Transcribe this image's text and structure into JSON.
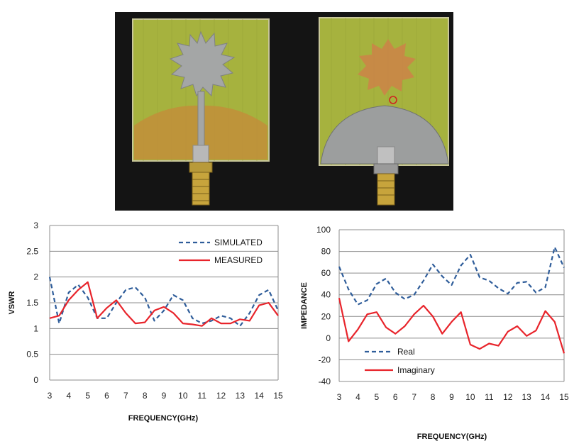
{
  "photo": {
    "description_icons": [
      "antenna-front-icon",
      "antenna-back-icon"
    ],
    "colors": {
      "background": "#141414",
      "board": "#a6b23e",
      "metal": "#a4a6a6",
      "copper": "#c58a3a"
    }
  },
  "chart_data": [
    {
      "type": "line",
      "xlabel": "FREQUENCY(GHz)",
      "ylabel": "VSWR",
      "xlim": [
        3,
        15
      ],
      "ylim": [
        0,
        3
      ],
      "xticks": [
        "3",
        "4",
        "5",
        "6",
        "7",
        "8",
        "9",
        "10",
        "11",
        "12",
        "13",
        "14",
        "15"
      ],
      "yticks": [
        "0",
        "0.5",
        "1",
        "1.5",
        "2",
        "2.5",
        "3"
      ],
      "grid": true,
      "legend_position": "top-right",
      "series": [
        {
          "name": "SIMULATED",
          "style": "dashed",
          "color": "#2f5d9a",
          "x": [
            3,
            3.5,
            4,
            4.5,
            5,
            5.5,
            6,
            6.5,
            7,
            7.5,
            8,
            8.5,
            9,
            9.5,
            10,
            10.5,
            11,
            11.5,
            12,
            12.5,
            13,
            13.5,
            14,
            14.5,
            15
          ],
          "y": [
            2.0,
            1.1,
            1.7,
            1.85,
            1.6,
            1.2,
            1.2,
            1.5,
            1.75,
            1.8,
            1.6,
            1.15,
            1.35,
            1.65,
            1.55,
            1.2,
            1.1,
            1.15,
            1.25,
            1.2,
            1.05,
            1.3,
            1.65,
            1.75,
            1.35
          ]
        },
        {
          "name": "MEASURED",
          "style": "solid",
          "color": "#e8242b",
          "x": [
            3,
            3.5,
            4,
            4.5,
            5,
            5.5,
            6,
            6.5,
            7,
            7.5,
            8,
            8.5,
            9,
            9.5,
            10,
            10.5,
            11,
            11.5,
            12,
            12.5,
            13,
            13.5,
            14,
            14.5,
            15
          ],
          "y": [
            1.2,
            1.25,
            1.55,
            1.75,
            1.9,
            1.2,
            1.4,
            1.55,
            1.3,
            1.1,
            1.12,
            1.35,
            1.42,
            1.3,
            1.1,
            1.08,
            1.05,
            1.2,
            1.1,
            1.1,
            1.18,
            1.15,
            1.45,
            1.5,
            1.25
          ]
        }
      ]
    },
    {
      "type": "line",
      "xlabel": "FREQUENCY(GHz)",
      "ylabel": "IMPEDANCE",
      "xlim": [
        3,
        15
      ],
      "ylim": [
        -40,
        100
      ],
      "xticks": [
        "3",
        "4",
        "5",
        "6",
        "7",
        "8",
        "9",
        "10",
        "11",
        "12",
        "13",
        "14",
        "15"
      ],
      "yticks": [
        "-40",
        "-20",
        "0",
        "20",
        "40",
        "60",
        "80",
        "100"
      ],
      "grid": true,
      "legend_position": "bottom-left",
      "series": [
        {
          "name": "Real",
          "style": "dashed",
          "color": "#2f5d9a",
          "x": [
            3,
            3.5,
            4,
            4.5,
            5,
            5.5,
            6,
            6.5,
            7,
            7.5,
            8,
            8.5,
            9,
            9.5,
            10,
            10.5,
            11,
            11.5,
            12,
            12.5,
            13,
            13.5,
            14,
            14.5,
            15
          ],
          "y": [
            66,
            45,
            31,
            35,
            50,
            55,
            42,
            36,
            40,
            53,
            68,
            57,
            49,
            67,
            77,
            56,
            53,
            46,
            41,
            51,
            52,
            42,
            47,
            84,
            65
          ]
        },
        {
          "name": "Imaginary",
          "style": "solid",
          "color": "#e8242b",
          "x": [
            3,
            3.5,
            4,
            4.5,
            5,
            5.5,
            6,
            6.5,
            7,
            7.5,
            8,
            8.5,
            9,
            9.5,
            10,
            10.5,
            11,
            11.5,
            12,
            12.5,
            13,
            13.5,
            14,
            14.5,
            15
          ],
          "y": [
            37,
            -3,
            8,
            22,
            24,
            10,
            4,
            11,
            22,
            30,
            20,
            4,
            15,
            24,
            -6,
            -10,
            -5,
            -7,
            6,
            11,
            2,
            7,
            25,
            15,
            -14
          ]
        }
      ]
    }
  ]
}
